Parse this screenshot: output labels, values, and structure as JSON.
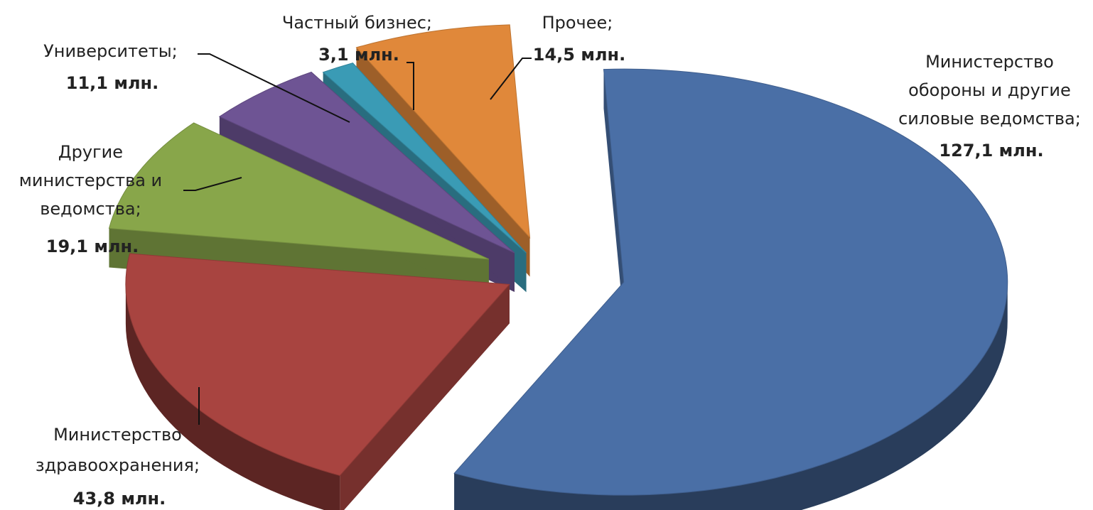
{
  "chart_data": {
    "type": "pie",
    "three_d": true,
    "exploded": true,
    "legend": "none",
    "unit": "млн.",
    "slices": [
      {
        "label": [
          "Министерство",
          "обороны и другие",
          "силовые ведомства;"
        ],
        "value": 127.1,
        "value_label": "127,1 млн.",
        "color": "#4A6FA6"
      },
      {
        "label": [
          "Министерство",
          "здравоохранения;"
        ],
        "value": 43.8,
        "value_label": "43,8 млн.",
        "color": "#A84440"
      },
      {
        "label": [
          "Другие",
          "министерства и",
          "ведомства;"
        ],
        "value": 19.1,
        "value_label": "19,1 млн.",
        "color": "#88A64A"
      },
      {
        "label": [
          "Университеты;"
        ],
        "value": 11.1,
        "value_label": "11,1 млн.",
        "color": "#6E5494"
      },
      {
        "label": [
          "Частный бизнес;"
        ],
        "value": 3.1,
        "value_label": "3,1 млн.",
        "color": "#3A9BB5"
      },
      {
        "label": [
          "Прочее;"
        ],
        "value": 14.5,
        "value_label": "14,5 млн.",
        "color": "#E0883A"
      }
    ]
  }
}
